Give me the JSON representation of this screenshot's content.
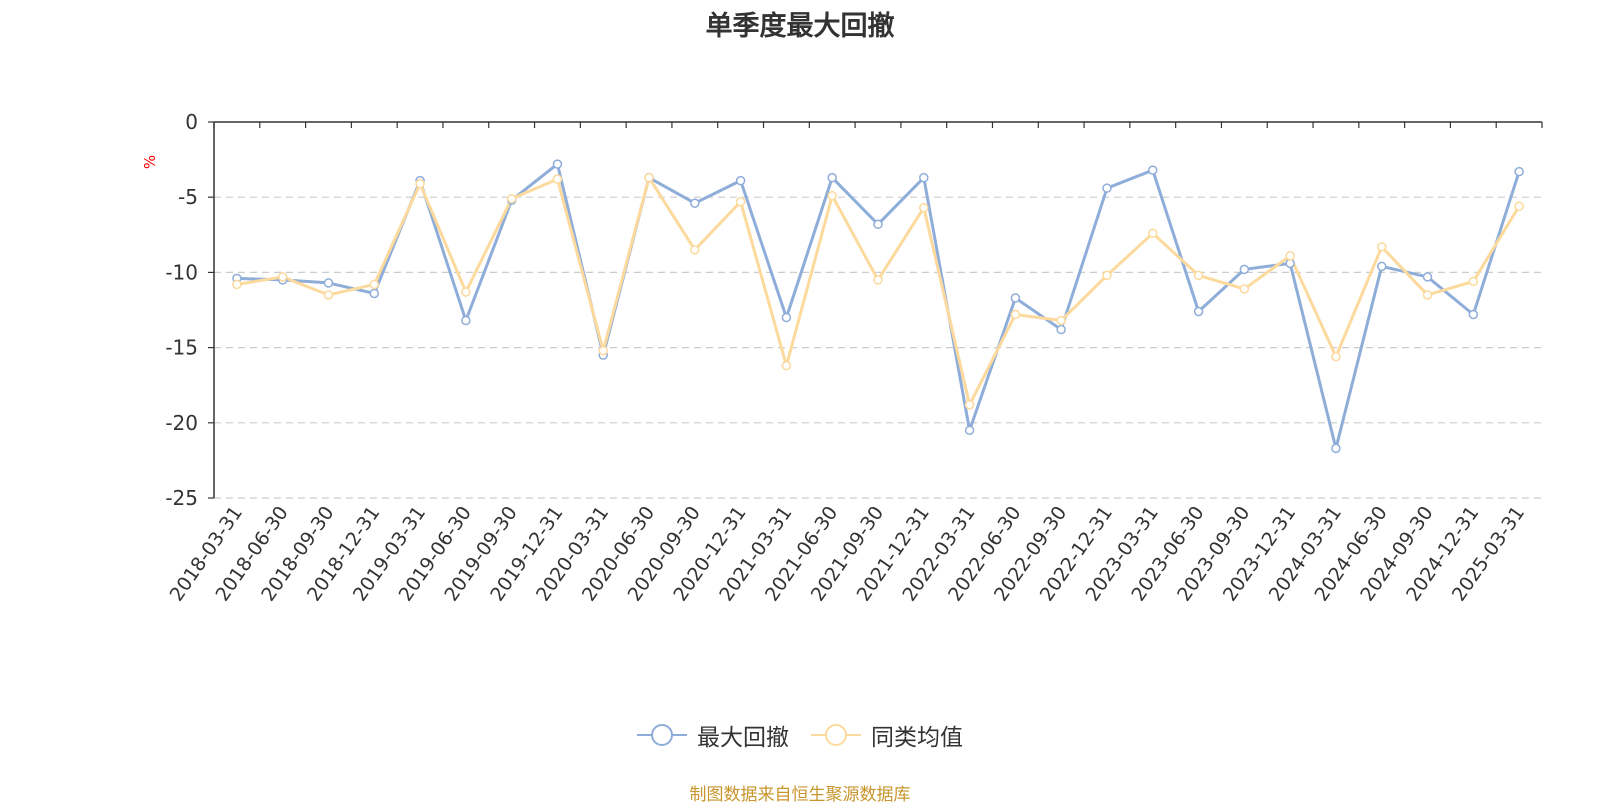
{
  "chart_data": {
    "type": "line",
    "title": "单季度最大回撤",
    "ylabel": "%",
    "ylim": [
      -25,
      0
    ],
    "yticks": [
      0,
      -5,
      -10,
      -15,
      -20,
      -25
    ],
    "grid": true,
    "legend_position": "bottom-center",
    "categories": [
      "2018-03-31",
      "2018-06-30",
      "2018-09-30",
      "2018-12-31",
      "2019-03-31",
      "2019-06-30",
      "2019-09-30",
      "2019-12-31",
      "2020-03-31",
      "2020-06-30",
      "2020-09-30",
      "2020-12-31",
      "2021-03-31",
      "2021-06-30",
      "2021-09-30",
      "2021-12-31",
      "2022-03-31",
      "2022-06-30",
      "2022-09-30",
      "2022-12-31",
      "2023-03-31",
      "2023-06-30",
      "2023-09-30",
      "2023-12-31",
      "2024-03-31",
      "2024-06-30",
      "2024-09-30",
      "2024-12-31",
      "2025-03-31"
    ],
    "series": [
      {
        "name": "最大回撤",
        "color": "#8fadd9",
        "values": [
          -10.4,
          -10.5,
          -10.7,
          -11.4,
          -3.9,
          -13.2,
          -5.2,
          -2.8,
          -15.5,
          -3.7,
          -5.4,
          -3.9,
          -13.0,
          -3.7,
          -6.8,
          -3.7,
          -20.5,
          -11.7,
          -13.8,
          -4.4,
          -3.2,
          -12.6,
          -9.8,
          -9.4,
          -21.7,
          -9.6,
          -10.3,
          -12.8,
          -3.3
        ]
      },
      {
        "name": "同类均值",
        "color": "#fcd99d",
        "values": [
          -10.8,
          -10.3,
          -11.5,
          -10.8,
          -4.1,
          -11.3,
          -5.1,
          -3.8,
          -15.2,
          -3.7,
          -8.5,
          -5.3,
          -16.2,
          -4.9,
          -10.5,
          -5.7,
          -18.8,
          -12.8,
          -13.2,
          -10.2,
          -7.4,
          -10.2,
          -11.1,
          -8.9,
          -15.6,
          -8.3,
          -11.5,
          -10.6,
          -5.6
        ]
      }
    ]
  },
  "source_note": "制图数据来自恒生聚源数据库"
}
